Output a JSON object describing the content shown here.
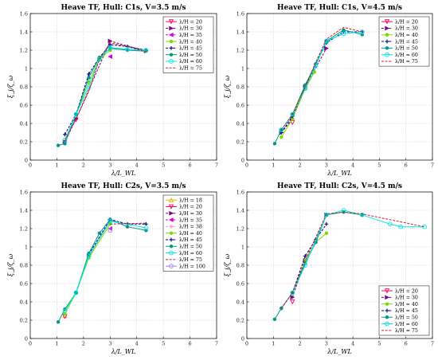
{
  "colors": {
    "l18": "#e6b800",
    "l20": "#ff0066",
    "l30": "#800080",
    "l35": "#dd00dd",
    "l38": "#ffa0d0",
    "l40": "#77dd00",
    "l45": "#000080",
    "l50": "#009988",
    "l60": "#00e5e5",
    "l75": "#cc2222",
    "l100": "#a080ff"
  },
  "chart_data": [
    {
      "type": "line",
      "title": "Heave TF, Hull: C1s, V=3.5 m/s",
      "xlabel": "λ/L_WL",
      "ylabel": "ξ_j/ζ_ω",
      "xlim": [
        0,
        7
      ],
      "ylim": [
        0,
        1.6
      ],
      "xticks": [
        "0",
        "1",
        "2",
        "3",
        "4",
        "5",
        "6",
        "7"
      ],
      "yticks": [
        "0",
        "0.2",
        "0.4",
        "0.6",
        "0.8",
        "1",
        "1.2",
        "1.4",
        "1.6"
      ],
      "grid": true,
      "legend": "top-right",
      "series": [
        {
          "name": "λ/H = 20",
          "color_key": "l20",
          "marker": "tri-down",
          "dash": "solid",
          "x": [
            1.72
          ],
          "y": [
            0.44
          ]
        },
        {
          "name": "λ/H = 30",
          "color_key": "l30",
          "marker": "tri-right",
          "dash": "dash",
          "x": [
            1.3,
            1.72,
            3.0,
            4.35
          ],
          "y": [
            0.2,
            0.45,
            1.3,
            1.19
          ]
        },
        {
          "name": "λ/H = 35",
          "color_key": "l35",
          "marker": "tri-left",
          "dash": "dash",
          "x": [
            3.0
          ],
          "y": [
            1.13
          ]
        },
        {
          "name": "λ/H = 40",
          "color_key": "l40",
          "marker": "dot",
          "dash": "solid",
          "x": [
            1.72,
            2.2,
            2.6,
            3.0
          ],
          "y": [
            0.5,
            0.85,
            1.1,
            1.2
          ]
        },
        {
          "name": "λ/H = 45",
          "color_key": "l45",
          "marker": "plus",
          "dash": "dash",
          "x": [
            1.3,
            1.72,
            2.2,
            2.6,
            3.0,
            3.65,
            4.35
          ],
          "y": [
            0.28,
            0.5,
            0.94,
            1.12,
            1.26,
            1.24,
            1.2
          ]
        },
        {
          "name": "λ/H = 50",
          "color_key": "l50",
          "marker": "dot",
          "dash": "solid",
          "x": [
            1.05,
            1.3,
            1.72,
            2.2,
            2.6,
            3.0,
            3.65,
            4.35
          ],
          "y": [
            0.16,
            0.18,
            0.5,
            0.9,
            1.12,
            1.22,
            1.2,
            1.19
          ]
        },
        {
          "name": "λ/H = 60",
          "color_key": "l60",
          "marker": "circle",
          "dash": "solid",
          "x": [
            1.3,
            1.72,
            2.2,
            2.6,
            3.0,
            3.65,
            4.35
          ],
          "y": [
            0.22,
            0.5,
            0.8,
            1.1,
            1.23,
            1.21,
            1.2
          ]
        },
        {
          "name": "λ/H = 75",
          "color_key": "l75",
          "marker": "none",
          "dash": "dash",
          "x": [
            1.3,
            1.72,
            2.2,
            2.6,
            3.0,
            3.65,
            4.35
          ],
          "y": [
            0.22,
            0.45,
            0.75,
            1.1,
            1.28,
            1.24,
            1.18
          ]
        }
      ]
    },
    {
      "type": "line",
      "title": "Heave TF, Hull: C1s, V=4.5 m/s",
      "xlabel": "λ/L_WL",
      "ylabel": "ξ_j/ζ_ω",
      "xlim": [
        0,
        7
      ],
      "ylim": [
        0,
        1.6
      ],
      "xticks": [
        "0",
        "1",
        "2",
        "3",
        "4",
        "5",
        "6",
        "7"
      ],
      "yticks": [
        "0",
        "0.2",
        "0.4",
        "0.6",
        "0.8",
        "1",
        "1.2",
        "1.4",
        "1.6"
      ],
      "grid": true,
      "legend": "top-right",
      "series": [
        {
          "name": "λ/H = 20",
          "color_key": "l20",
          "marker": "tri-down",
          "dash": "solid",
          "x": [
            1.72
          ],
          "y": [
            0.41
          ]
        },
        {
          "name": "λ/H = 30",
          "color_key": "l30",
          "marker": "tri-right",
          "dash": "dash",
          "x": [
            1.3,
            1.72,
            2.2,
            3.0
          ],
          "y": [
            0.3,
            0.45,
            0.8,
            1.22
          ]
        },
        {
          "name": "λ/H = 40",
          "color_key": "l40",
          "marker": "dot",
          "dash": "solid",
          "x": [
            1.3,
            1.72,
            2.2,
            2.55
          ],
          "y": [
            0.25,
            0.45,
            0.78,
            0.96
          ]
        },
        {
          "name": "λ/H = 45",
          "color_key": "l45",
          "marker": "plus",
          "dash": "dash",
          "x": [
            1.3,
            1.72,
            2.2,
            2.6,
            3.0,
            3.65,
            4.35
          ],
          "y": [
            0.3,
            0.48,
            0.8,
            1.05,
            1.28,
            1.4,
            1.4
          ]
        },
        {
          "name": "λ/H = 50",
          "color_key": "l50",
          "marker": "dot",
          "dash": "solid",
          "x": [
            1.05,
            1.3,
            1.72,
            2.2,
            2.6,
            3.0,
            3.65,
            4.35
          ],
          "y": [
            0.18,
            0.33,
            0.5,
            0.82,
            1.05,
            1.3,
            1.42,
            1.37
          ]
        },
        {
          "name": "λ/H = 60",
          "color_key": "l60",
          "marker": "circle",
          "dash": "solid",
          "x": [
            1.3,
            1.72,
            2.2,
            2.6,
            3.0,
            3.65,
            4.35
          ],
          "y": [
            0.33,
            0.5,
            0.78,
            1.03,
            1.3,
            1.38,
            1.4
          ]
        },
        {
          "name": "λ/H = 75",
          "color_key": "l75",
          "marker": "none",
          "dash": "dash",
          "x": [
            1.3,
            1.72,
            2.2,
            2.6,
            3.0,
            3.65,
            4.35
          ],
          "y": [
            0.33,
            0.5,
            0.8,
            1.07,
            1.32,
            1.45,
            1.4
          ]
        }
      ]
    },
    {
      "type": "line",
      "title": "Heave TF, Hull: C2s, V=3.5 m/s",
      "xlabel": "λ/L_WL",
      "ylabel": "ξ_j/ζ_ω",
      "xlim": [
        0,
        7
      ],
      "ylim": [
        0,
        1.6
      ],
      "xticks": [
        "0",
        "1",
        "2",
        "3",
        "4",
        "5",
        "6",
        "7"
      ],
      "yticks": [
        "0",
        "0.2",
        "0.4",
        "0.6",
        "0.8",
        "1",
        "1.2",
        "1.4",
        "1.6"
      ],
      "grid": true,
      "legend": "top-right",
      "series": [
        {
          "name": "λ/H = 18",
          "color_key": "l18",
          "marker": "tri-up",
          "dash": "solid",
          "x": [
            1.3
          ],
          "y": [
            0.25
          ]
        },
        {
          "name": "λ/H = 20",
          "color_key": "l20",
          "marker": "tri-down",
          "dash": "solid",
          "x": [
            1.3
          ],
          "y": [
            0.24
          ]
        },
        {
          "name": "λ/H = 30",
          "color_key": "l30",
          "marker": "tri-right",
          "dash": "dash",
          "x": [
            2.2,
            3.0
          ],
          "y": [
            0.9,
            1.28
          ]
        },
        {
          "name": "λ/H = 35",
          "color_key": "l35",
          "marker": "tri-left",
          "dash": "dash",
          "x": [
            3.0
          ],
          "y": [
            1.2
          ]
        },
        {
          "name": "λ/H = 38",
          "color_key": "l38",
          "marker": "star",
          "dash": "dash",
          "x": [
            3.0
          ],
          "y": [
            1.28
          ]
        },
        {
          "name": "λ/H = 40",
          "color_key": "l40",
          "marker": "dot",
          "dash": "solid",
          "x": [
            1.3,
            1.72,
            2.2,
            3.0
          ],
          "y": [
            0.27,
            0.5,
            0.88,
            1.25
          ]
        },
        {
          "name": "λ/H = 45",
          "color_key": "l45",
          "marker": "plus",
          "dash": "dash",
          "x": [
            2.2,
            3.0,
            3.65,
            4.35
          ],
          "y": [
            0.92,
            1.3,
            1.25,
            1.25
          ]
        },
        {
          "name": "λ/H = 50",
          "color_key": "l50",
          "marker": "dot",
          "dash": "solid",
          "x": [
            1.05,
            1.3,
            1.72,
            2.2,
            2.6,
            3.0,
            3.65,
            4.35
          ],
          "y": [
            0.18,
            0.32,
            0.5,
            0.93,
            1.15,
            1.3,
            1.22,
            1.18
          ]
        },
        {
          "name": "λ/H = 60",
          "color_key": "l60",
          "marker": "circle",
          "dash": "solid",
          "x": [
            1.3,
            1.72,
            2.2,
            3.0,
            4.35
          ],
          "y": [
            0.3,
            0.5,
            0.9,
            1.28,
            1.21
          ]
        },
        {
          "name": "λ/H = 75",
          "color_key": "l75",
          "marker": "none",
          "dash": "dash",
          "x": [
            3.0,
            4.35
          ],
          "y": [
            1.25,
            1.26
          ]
        },
        {
          "name": "λ/H = 100",
          "color_key": "l100",
          "marker": "circle",
          "dash": "solid",
          "x": [
            3.0
          ],
          "y": [
            1.18
          ]
        }
      ]
    },
    {
      "type": "line",
      "title": "Heave TF, Hull: C2s, V=4.5 m/s",
      "xlabel": "λ/L_WL",
      "ylabel": "ξ_j/ζ_ω",
      "xlim": [
        0,
        7
      ],
      "ylim": [
        0,
        1.6
      ],
      "xticks": [
        "0",
        "1",
        "2",
        "3",
        "4",
        "5",
        "6",
        "7"
      ],
      "yticks": [
        "0",
        "0.2",
        "0.4",
        "0.6",
        "0.8",
        "1",
        "1.2",
        "1.4",
        "1.6"
      ],
      "grid": true,
      "legend": "bottom-right",
      "series": [
        {
          "name": "λ/H = 20",
          "color_key": "l20",
          "marker": "tri-down",
          "dash": "solid",
          "x": [
            1.72
          ],
          "y": [
            0.4
          ]
        },
        {
          "name": "λ/H = 30",
          "color_key": "l30",
          "marker": "tri-right",
          "dash": "dash",
          "x": [
            1.72,
            2.2,
            3.0
          ],
          "y": [
            0.45,
            0.85,
            1.35
          ]
        },
        {
          "name": "λ/H = 40",
          "color_key": "l40",
          "marker": "dot",
          "dash": "solid",
          "x": [
            1.72,
            2.2,
            2.6,
            3.0
          ],
          "y": [
            0.5,
            0.85,
            1.05,
            1.15
          ]
        },
        {
          "name": "λ/H = 45",
          "color_key": "l45",
          "marker": "plus",
          "dash": "dash",
          "x": [
            1.3,
            1.72,
            2.2,
            2.6,
            3.0
          ],
          "y": [
            0.33,
            0.5,
            0.9,
            1.08,
            1.25
          ]
        },
        {
          "name": "λ/H = 50",
          "color_key": "l50",
          "marker": "dot",
          "dash": "solid",
          "x": [
            1.05,
            1.3,
            1.72,
            2.2,
            2.6,
            3.0,
            3.65,
            4.35
          ],
          "y": [
            0.21,
            0.33,
            0.5,
            0.82,
            1.05,
            1.35,
            1.38,
            1.35
          ]
        },
        {
          "name": "λ/H = 60",
          "color_key": "l60",
          "marker": "circle",
          "dash": "solid",
          "x": [
            1.72,
            2.2,
            3.0,
            3.65,
            4.35,
            5.4,
            5.8,
            6.7
          ],
          "y": [
            0.5,
            0.8,
            1.35,
            1.4,
            1.35,
            1.25,
            1.22,
            1.22
          ]
        },
        {
          "name": "λ/H = 75",
          "color_key": "l75",
          "marker": "none",
          "dash": "dash",
          "x": [
            1.3,
            1.72,
            2.2,
            3.0,
            3.65,
            4.35,
            6.7
          ],
          "y": [
            0.33,
            0.5,
            0.85,
            1.36,
            1.38,
            1.36,
            1.22
          ]
        }
      ]
    }
  ]
}
